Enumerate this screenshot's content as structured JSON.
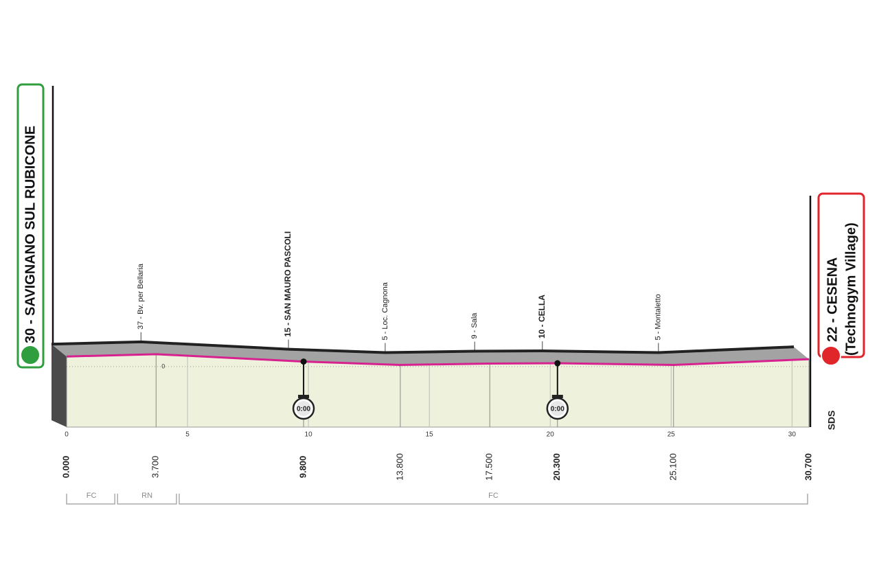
{
  "chart_data": {
    "type": "profile",
    "start": "30 - SAVIGNANO SUL RUBICONE",
    "finish": [
      "22 - CESENA",
      "(Technogym Village)"
    ],
    "x": [
      0,
      3.7,
      9.8,
      13.8,
      17.5,
      20.3,
      25.1,
      30.7
    ],
    "values": [
      30,
      37,
      15,
      5,
      9,
      10,
      5,
      22
    ],
    "value_labels": [
      "0.000",
      "3.700",
      "9.800",
      "13.800",
      "17.500",
      "20.300",
      "25.100",
      "30.700"
    ],
    "point_labels": [
      null,
      "37 - Bv. per Bellaria",
      "15 - SAN MAURO PASCOLI",
      "5 - Loc. Cagnona",
      "9 - Sala",
      "10 - CELLA",
      "5 - Montaletto",
      null
    ],
    "bold_points": [
      2,
      5
    ],
    "bold_distances": [
      0,
      2,
      5,
      7
    ],
    "color": "#d6218f",
    "xlim": [
      0,
      30.7
    ],
    "xticks": [
      0,
      5,
      10,
      15,
      20,
      25,
      30
    ],
    "ylim": [
      -180,
      100
    ],
    "yticks": [
      0
    ],
    "checkpoints": [
      {
        "x": 9.8,
        "label": "0:00"
      },
      {
        "x": 20.3,
        "label": "0:00"
      }
    ],
    "sections": [
      {
        "label": "FC",
        "from": 0,
        "to": 2.05
      },
      {
        "label": "RN",
        "from": 2.05,
        "to": 4.6
      },
      {
        "label": "FC",
        "from": 4.6,
        "to": 30.7
      }
    ],
    "logo": "SDS"
  }
}
